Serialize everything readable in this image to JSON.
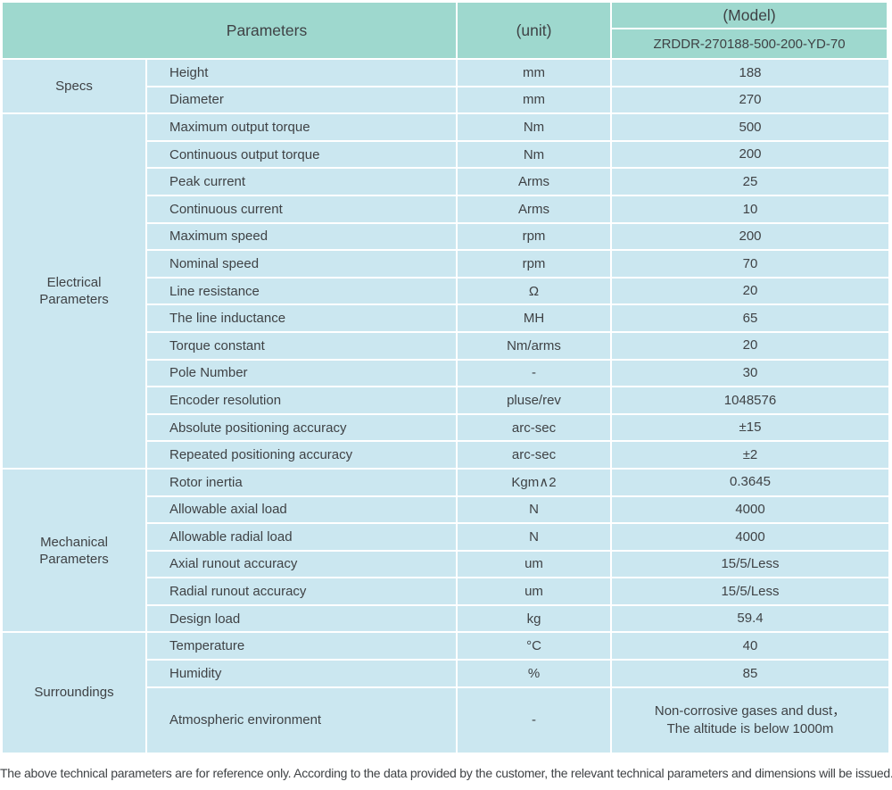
{
  "colors": {
    "header_bg": "#9ed8ce",
    "body_bg": "#cbe7f0",
    "divider": "#ffffff",
    "text": "#3f4245"
  },
  "table": {
    "header": {
      "parameters_label": "Parameters",
      "unit_label": "(unit)",
      "model_label": "(Model)",
      "model_value": "ZRDDR-270188-500-200-YD-70"
    },
    "sections": [
      {
        "group": "Specs",
        "rows": [
          {
            "name": "Height",
            "unit": "mm",
            "value": "188"
          },
          {
            "name": "Diameter",
            "unit": "mm",
            "value": "270"
          }
        ]
      },
      {
        "group": "Electrical\nParameters",
        "rows": [
          {
            "name": "Maximum output torque",
            "unit": "Nm",
            "value": "500"
          },
          {
            "name": "Continuous output torque",
            "unit": "Nm",
            "value": "200"
          },
          {
            "name": "Peak current",
            "unit": "Arms",
            "value": "25"
          },
          {
            "name": "Continuous current",
            "unit": "Arms",
            "value": "10"
          },
          {
            "name": "Maximum speed",
            "unit": "rpm",
            "value": "200"
          },
          {
            "name": "Nominal speed",
            "unit": "rpm",
            "value": "70"
          },
          {
            "name": "Line resistance",
            "unit": "Ω",
            "value": "20"
          },
          {
            "name": "The line inductance",
            "unit": "MH",
            "value": "65"
          },
          {
            "name": "Torque constant",
            "unit": "Nm/arms",
            "value": "20"
          },
          {
            "name": "Pole Number",
            "unit": "-",
            "value": "30"
          },
          {
            "name": "Encoder resolution",
            "unit": "pluse/rev",
            "value": "1048576"
          },
          {
            "name": "Absolute positioning accuracy",
            "unit": "arc-sec",
            "value": "±15"
          },
          {
            "name": "Repeated positioning accuracy",
            "unit": "arc-sec",
            "value": "±2"
          }
        ]
      },
      {
        "group": "Mechanical\nParameters",
        "rows": [
          {
            "name": "Rotor inertia",
            "unit": "Kgm∧2",
            "value": "0.3645"
          },
          {
            "name": "Allowable axial load",
            "unit": "N",
            "value": "4000"
          },
          {
            "name": "Allowable radial load",
            "unit": "N",
            "value": "4000"
          },
          {
            "name": "Axial runout accuracy",
            "unit": "um",
            "value": "15/5/Less"
          },
          {
            "name": "Radial runout accuracy",
            "unit": "um",
            "value": "15/5/Less"
          },
          {
            "name": "Design load",
            "unit": "kg",
            "value": "59.4"
          }
        ]
      },
      {
        "group": "Surroundings",
        "rows": [
          {
            "name": "Temperature",
            "unit": "°C",
            "value": "40"
          },
          {
            "name": "Humidity",
            "unit": "%",
            "value": "85"
          },
          {
            "name": "Atmospheric environment",
            "unit": "-",
            "value": "Non-corrosive gases and dust，\nThe altitude is below 1000m"
          }
        ]
      }
    ],
    "footnote": "The above technical parameters are for reference only. According to the data provided by the customer, the relevant technical parameters and dimensions will be issued."
  }
}
